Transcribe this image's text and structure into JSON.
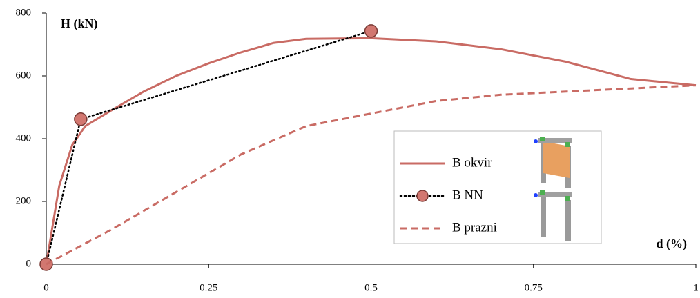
{
  "chart_data": {
    "type": "line",
    "ylabel": "H (kN)",
    "xlabel": "d (%)",
    "xlim": [
      0,
      1
    ],
    "xticks": [
      0,
      0.25,
      0.5,
      0.75,
      1
    ],
    "ylim": [
      0,
      800
    ],
    "yticks": [
      0,
      200,
      400,
      600,
      800
    ],
    "grid": false,
    "legend": "lower right",
    "series": [
      {
        "name": "B okvir",
        "color": "#c96b64",
        "style": "solid",
        "x": [
          0,
          0.02,
          0.04,
          0.06,
          0.08,
          0.1,
          0.15,
          0.2,
          0.25,
          0.3,
          0.35,
          0.4,
          0.5,
          0.6,
          0.7,
          0.8,
          0.9,
          0.95,
          1
        ],
        "values": [
          0,
          250,
          380,
          440,
          465,
          490,
          550,
          600,
          640,
          675,
          705,
          718,
          720,
          710,
          685,
          645,
          590,
          580,
          570
        ]
      },
      {
        "name": "B NN",
        "color": "#000000",
        "style": "dotted",
        "marker": "circle",
        "marker_color": "#d27770",
        "x": [
          0,
          0.053,
          0.5
        ],
        "values": [
          0,
          462,
          743
        ]
      },
      {
        "name": "B prazni",
        "color": "#c96b64",
        "style": "dashed",
        "x": [
          0,
          0.1,
          0.2,
          0.3,
          0.4,
          0.5,
          0.6,
          0.7,
          0.8,
          0.9,
          1
        ],
        "values": [
          0,
          110,
          230,
          350,
          440,
          480,
          520,
          540,
          550,
          560,
          570
        ]
      }
    ]
  }
}
